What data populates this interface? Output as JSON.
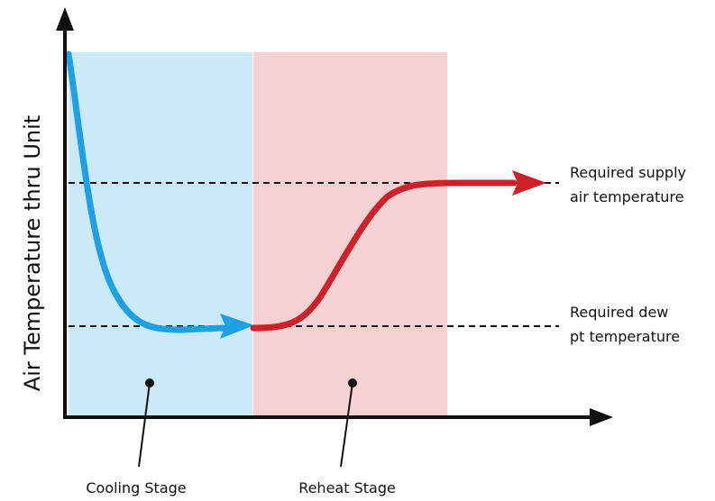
{
  "y_axis_label": "Air Temperature thru Unit",
  "stages": [
    {
      "id": "cooling",
      "label": "Cooling Stage",
      "fill": "#cce9f7",
      "curve_color": "#1ea0e6"
    },
    {
      "id": "reheat",
      "label": "Reheat Stage",
      "fill": "#f5d1d4",
      "curve_color": "#cf1f29"
    }
  ],
  "thresholds": [
    {
      "id": "supply",
      "lines": [
        "Required supply",
        "air temperature"
      ]
    },
    {
      "id": "dewpoint",
      "lines": [
        "Required dew",
        "pt temperature"
      ]
    }
  ],
  "colors": {
    "axis": "#111111",
    "dash": "#111111"
  }
}
